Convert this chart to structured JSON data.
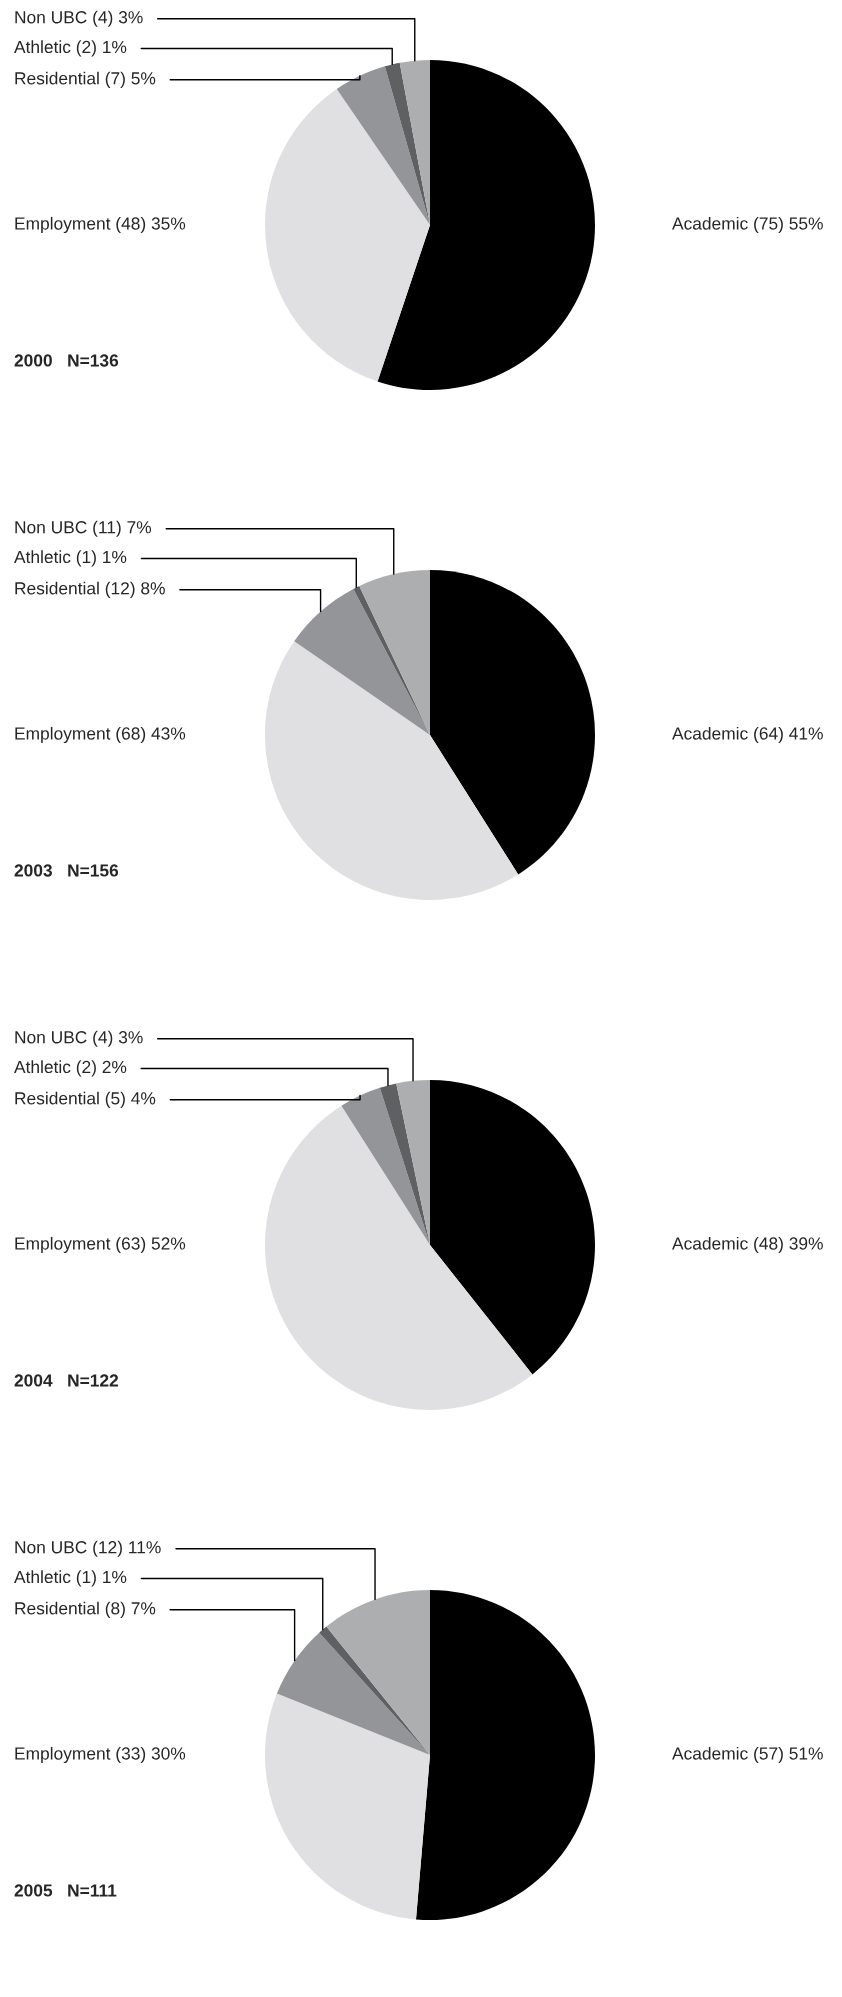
{
  "chart_data": [
    {
      "type": "pie",
      "title": "2000   N=136",
      "categories": [
        "Academic",
        "Employment",
        "Residential",
        "Athletic",
        "Non UBC"
      ],
      "values": [
        75,
        48,
        7,
        2,
        4
      ],
      "value_labels": [
        "(75) 55%",
        "(48) 35%",
        "(7) 5%",
        "(2) 1%",
        "(4) 3%"
      ],
      "colors": [
        "#000000",
        "#e0e0e2",
        "#939598",
        "#5f6062",
        "#adaeb0"
      ]
    },
    {
      "type": "pie",
      "title": "2003   N=156",
      "categories": [
        "Academic",
        "Employment",
        "Residential",
        "Athletic",
        "Non UBC"
      ],
      "values": [
        64,
        68,
        12,
        1,
        11
      ],
      "value_labels": [
        "(64) 41%",
        "(68) 43%",
        "(12) 8%",
        "(1) 1%",
        "(11) 7%"
      ],
      "colors": [
        "#000000",
        "#e0e0e2",
        "#939598",
        "#5f6062",
        "#adaeb0"
      ]
    },
    {
      "type": "pie",
      "title": "2004   N=122",
      "categories": [
        "Academic",
        "Employment",
        "Residential",
        "Athletic",
        "Non UBC"
      ],
      "values": [
        48,
        63,
        5,
        2,
        4
      ],
      "value_labels": [
        "(48) 39%",
        "(63) 52%",
        "(5) 4%",
        "(2) 2%",
        "(4) 3%"
      ],
      "colors": [
        "#000000",
        "#e0e0e2",
        "#939598",
        "#5f6062",
        "#adaeb0"
      ]
    },
    {
      "type": "pie",
      "title": "2005   N=111",
      "categories": [
        "Academic",
        "Employment",
        "Residential",
        "Athletic",
        "Non UBC"
      ],
      "values": [
        57,
        33,
        8,
        1,
        12
      ],
      "value_labels": [
        "(57) 51%",
        "(33) 30%",
        "(8) 7%",
        "(1) 1%",
        "(12) 11%"
      ],
      "colors": [
        "#000000",
        "#e0e0e2",
        "#939598",
        "#5f6062",
        "#adaeb0"
      ]
    }
  ]
}
